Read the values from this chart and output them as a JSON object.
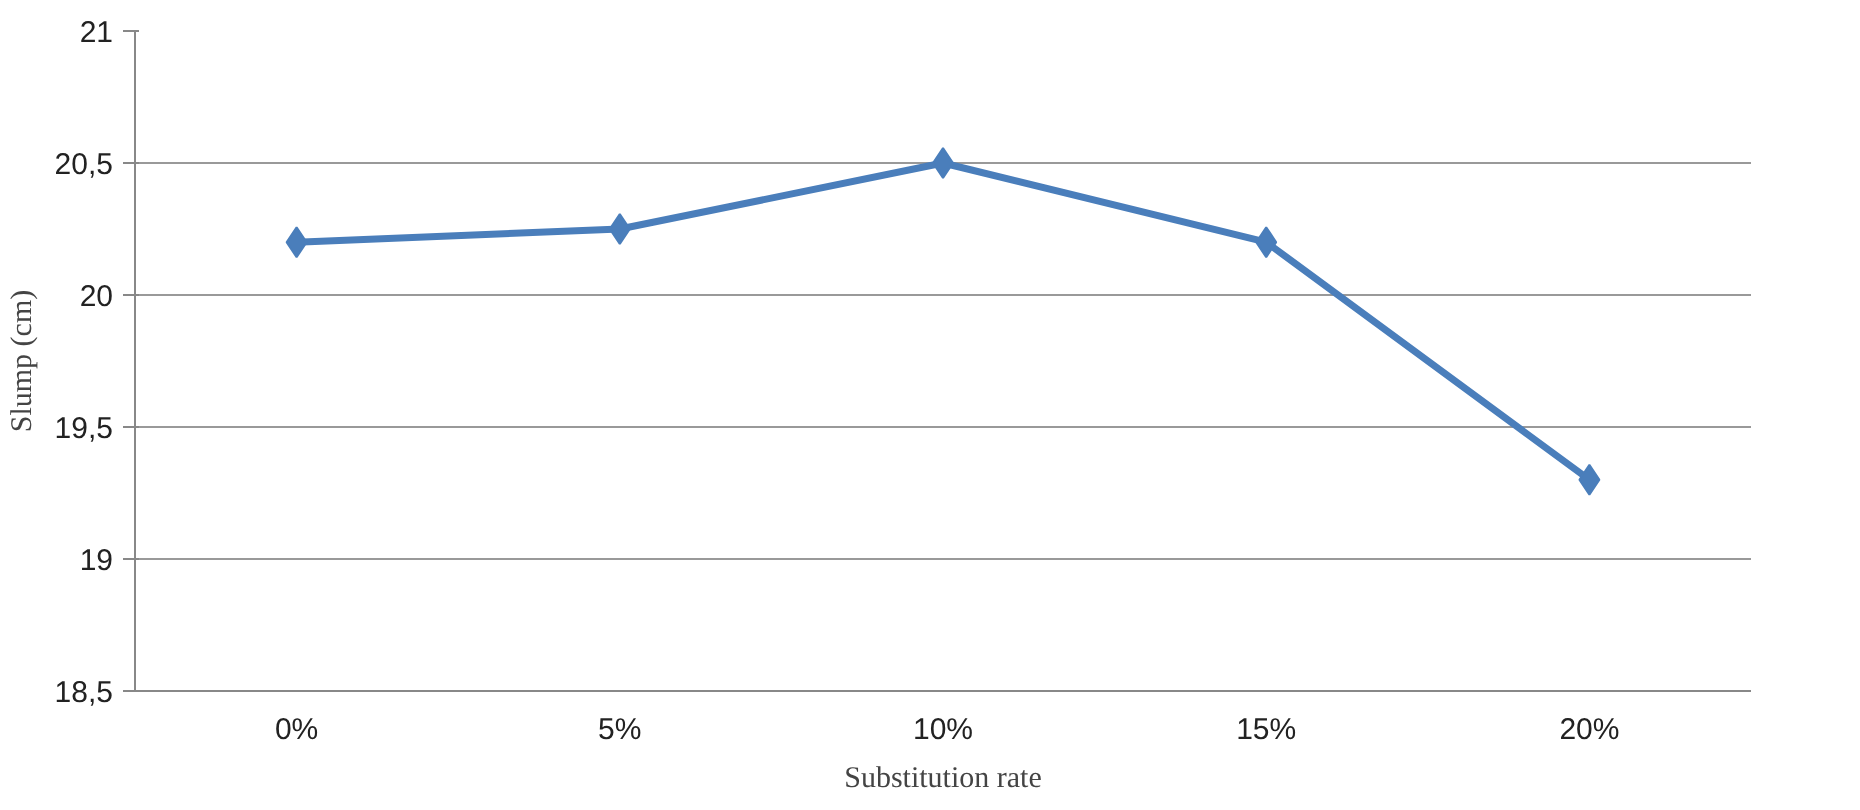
{
  "chart_data": {
    "type": "line",
    "xlabel": "Substitution rate",
    "ylabel": "Slump (cm)",
    "categories": [
      "0%",
      "5%",
      "10%",
      "15%",
      "20%"
    ],
    "series": [
      {
        "color": "#4a7ebb",
        "values": [
          20.2,
          20.25,
          20.5,
          20.2,
          19.3
        ]
      }
    ],
    "ylim": [
      18.5,
      21
    ],
    "yticks": [
      {
        "value": 18.5,
        "label": "18,5"
      },
      19,
      {
        "value": 19.5,
        "label": "19,5"
      },
      20,
      {
        "value": 20.5,
        "label": "20,5"
      },
      21
    ],
    "grid": "y",
    "marker": "diamond",
    "line_style": "solid"
  }
}
